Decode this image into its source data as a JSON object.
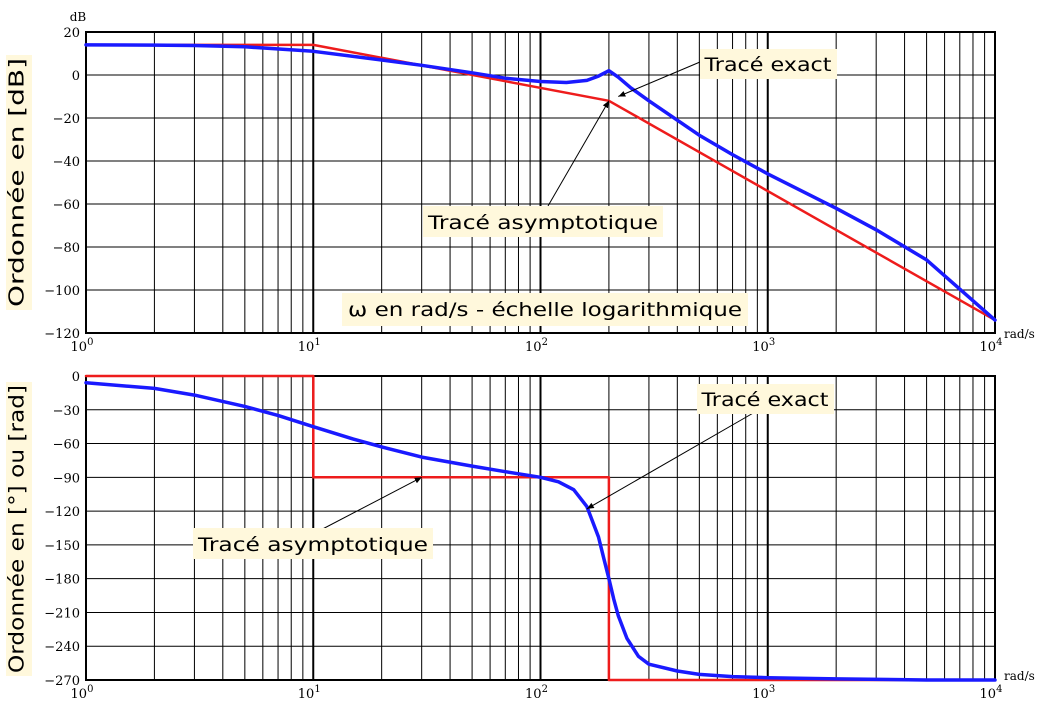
{
  "chart_data": [
    {
      "type": "line",
      "xscale": "log",
      "xlim": [
        1,
        10000
      ],
      "ylim": [
        -120,
        20
      ],
      "xlabel": "ω en rad/s - échelle logarithmique",
      "ylabel": "Ordonnée en [dB]",
      "x_unit": "rad/s",
      "y_unit": "dB",
      "x_tick_labels": [
        {
          "base": "10",
          "exp": "0"
        },
        {
          "base": "10",
          "exp": "1"
        },
        {
          "base": "10",
          "exp": "2"
        },
        {
          "base": "10",
          "exp": "3"
        },
        {
          "base": "10",
          "exp": "4"
        }
      ],
      "y_ticks": [
        20,
        0,
        -20,
        -40,
        -60,
        -80,
        -100,
        -120
      ],
      "y_tick_labels": [
        "20",
        "0",
        "−20",
        "−40",
        "−60",
        "−80",
        "−100",
        "−120"
      ],
      "grid": true,
      "series": [
        {
          "name": "Tracé asymptotique",
          "color": "#ee1c1c",
          "x": [
            1,
            10,
            200,
            10000
          ],
          "y": [
            14,
            14,
            -12,
            -114
          ]
        },
        {
          "name": "Tracé exact",
          "color": "#1a1aff",
          "x": [
            1,
            2,
            3,
            5,
            10,
            20,
            30,
            50,
            70,
            100,
            130,
            160,
            180,
            200,
            220,
            250,
            300,
            400,
            500,
            700,
            1000,
            2000,
            3000,
            5000,
            10000
          ],
          "y": [
            14,
            13.9,
            13.7,
            13.1,
            11,
            7,
            4.5,
            1,
            -1.5,
            -3,
            -3.5,
            -2.5,
            -0.5,
            2,
            -1,
            -6,
            -12,
            -21,
            -28,
            -37,
            -46,
            -62,
            -72,
            -86,
            -114
          ]
        }
      ],
      "annotations": [
        {
          "text": "Tracé exact",
          "target": {
            "x": 220,
            "y": -10
          }
        },
        {
          "text": "Tracé asymptotique",
          "target": {
            "x": 200,
            "y": -12
          }
        }
      ]
    },
    {
      "type": "line",
      "xscale": "log",
      "xlim": [
        1,
        10000
      ],
      "ylim": [
        -270,
        0
      ],
      "ylabel": "Ordonnée en [°] ou [rad]",
      "x_unit": "rad/s",
      "x_tick_labels": [
        {
          "base": "10",
          "exp": "0"
        },
        {
          "base": "10",
          "exp": "1"
        },
        {
          "base": "10",
          "exp": "2"
        },
        {
          "base": "10",
          "exp": "3"
        },
        {
          "base": "10",
          "exp": "4"
        }
      ],
      "y_ticks": [
        0,
        -30,
        -60,
        -90,
        -120,
        -150,
        -180,
        -210,
        -240,
        -270
      ],
      "y_tick_labels": [
        "0",
        "−30",
        "−60",
        "−90",
        "−120",
        "−150",
        "−180",
        "−210",
        "−240",
        "−270"
      ],
      "grid": true,
      "series": [
        {
          "name": "Tracé asymptotique",
          "color": "#ee1c1c",
          "x": [
            1,
            10,
            10,
            200,
            200,
            10000
          ],
          "y": [
            0,
            0,
            -90,
            -90,
            -270,
            -270
          ]
        },
        {
          "name": "Tracé exact",
          "color": "#1a1aff",
          "x": [
            1,
            2,
            3,
            5,
            7,
            10,
            15,
            20,
            30,
            50,
            70,
            100,
            120,
            140,
            160,
            180,
            190,
            200,
            210,
            220,
            240,
            270,
            300,
            400,
            500,
            700,
            1000,
            2000,
            5000,
            10000
          ],
          "y": [
            -6,
            -11,
            -17,
            -27,
            -35,
            -45,
            -56,
            -63,
            -72,
            -80,
            -85,
            -90,
            -94,
            -101,
            -116,
            -143,
            -162,
            -180,
            -198,
            -213,
            -233,
            -249,
            -256,
            -262,
            -265,
            -267,
            -268,
            -269,
            -270,
            -270
          ]
        }
      ],
      "annotations": [
        {
          "text": "Tracé exact",
          "target": {
            "x": 160,
            "y": -118
          }
        },
        {
          "text": "Tracé asymptotique",
          "target": {
            "x": 30,
            "y": -90
          }
        }
      ]
    }
  ]
}
